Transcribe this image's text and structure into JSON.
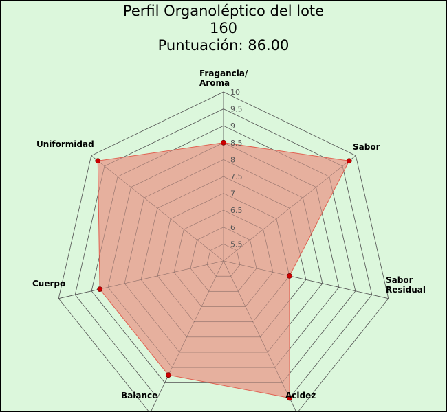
{
  "chart_data": {
    "type": "radar",
    "title_lines": [
      "Perfil Organoléptico del lote",
      "160",
      "Puntuación: 86.00"
    ],
    "axes": [
      {
        "label_lines": [
          "Fragancia/",
          "Aroma"
        ],
        "value": 8.5
      },
      {
        "label_lines": [
          "Sabor"
        ],
        "value": 9.75
      },
      {
        "label_lines": [
          "Sabor",
          "Residual"
        ],
        "value": 7.0
      },
      {
        "label_lines": [
          "Acidez"
        ],
        "value": 9.5
      },
      {
        "label_lines": [
          "Balance"
        ],
        "value": 8.75
      },
      {
        "label_lines": [
          "Cuerpo"
        ],
        "value": 8.75
      },
      {
        "label_lines": [
          "Uniformidad"
        ],
        "value": 9.75
      }
    ],
    "range": [
      5,
      10
    ],
    "ticks": [
      "5.5",
      "6",
      "6.5",
      "7",
      "7.5",
      "8",
      "8.5",
      "9",
      "9.5",
      "10"
    ],
    "tick_values": [
      5.5,
      6,
      6.5,
      7,
      7.5,
      8,
      8.5,
      9,
      9.5,
      10
    ],
    "grid": true,
    "colors": {
      "background": "#dcf7dc",
      "fill": "#e8a393",
      "stroke": "#e06050",
      "point": "#cc0000",
      "grid": "#555555"
    }
  }
}
